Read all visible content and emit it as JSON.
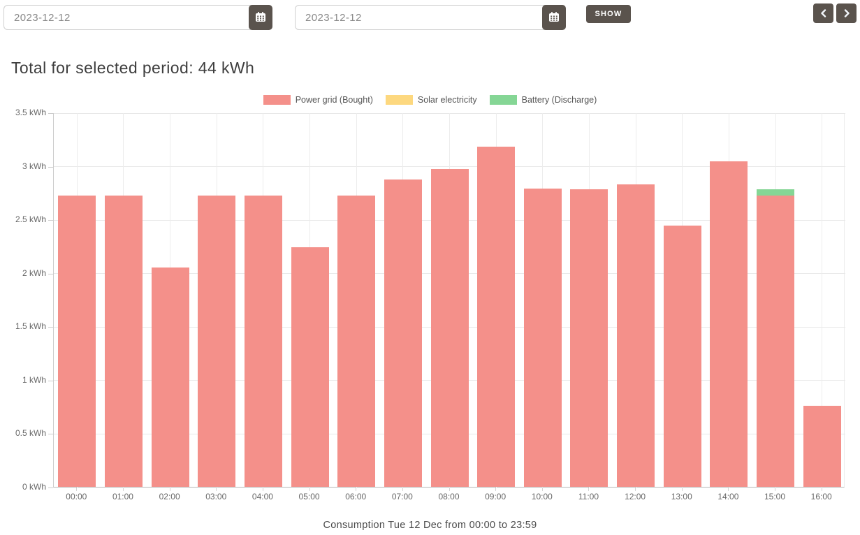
{
  "toolbar": {
    "date_from": "2023-12-12",
    "date_to": "2023-12-12",
    "show_label": "SHOW",
    "icons": {
      "calendar": "calendar-icon",
      "prev": "chevron-left-icon",
      "next": "chevron-right-icon"
    }
  },
  "heading": "Total for selected period: 44 kWh",
  "caption": "Consumption Tue 12 Dec from 00:00 to 23:59",
  "colors": {
    "button_dark": "#5a534d",
    "power_grid": "#f4908a",
    "solar": "#fdd87f",
    "battery": "#85d695"
  },
  "chart_data": {
    "type": "bar",
    "stacked": true,
    "title": "",
    "xlabel": "",
    "ylabel": "",
    "legend_position": "top",
    "grid": true,
    "ylim": [
      0,
      3.5
    ],
    "ytick_step": 0.5,
    "ytick_suffix": " kWh",
    "categories": [
      "00:00",
      "01:00",
      "02:00",
      "03:00",
      "04:00",
      "05:00",
      "06:00",
      "07:00",
      "08:00",
      "09:00",
      "10:00",
      "11:00",
      "12:00",
      "13:00",
      "14:00",
      "15:00",
      "16:00"
    ],
    "series": [
      {
        "name": "Power grid (Bought)",
        "color": "#f4908a",
        "values": [
          2.72,
          2.72,
          2.05,
          2.72,
          2.72,
          2.24,
          2.72,
          2.87,
          2.97,
          3.18,
          2.79,
          2.78,
          2.83,
          2.44,
          3.04,
          2.72,
          0.76
        ]
      },
      {
        "name": "Solar electricity",
        "color": "#fdd87f",
        "values": [
          0,
          0,
          0,
          0,
          0,
          0,
          0,
          0,
          0,
          0,
          0,
          0,
          0,
          0,
          0,
          0,
          0
        ]
      },
      {
        "name": "Battery (Discharge)",
        "color": "#85d695",
        "values": [
          0,
          0,
          0,
          0,
          0,
          0,
          0,
          0,
          0,
          0,
          0,
          0,
          0,
          0,
          0,
          0.06,
          0
        ]
      }
    ]
  }
}
